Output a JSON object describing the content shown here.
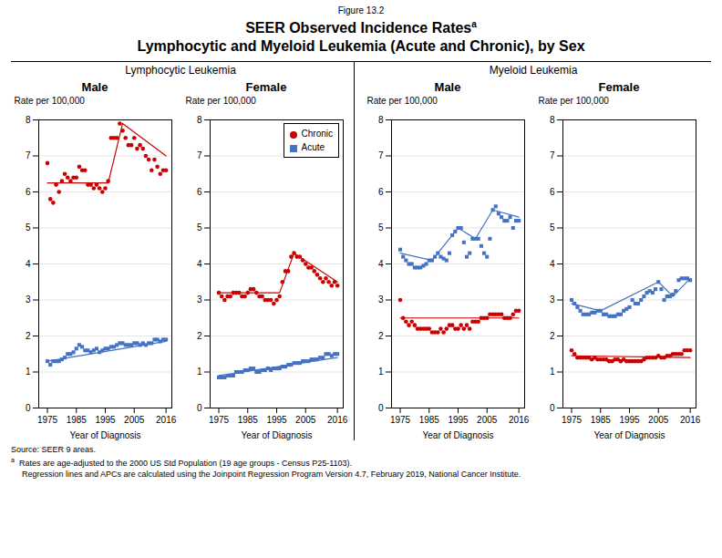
{
  "figure_label": "Figure 13.2",
  "title": "SEER Observed Incidence Rates",
  "title_mark": "a",
  "subtitle": "Lymphocytic and Myeloid Leukemia (Acute and Chronic), by Sex",
  "section_labels": [
    "Lymphocytic Leukemia",
    "Myeloid Leukemia"
  ],
  "notes": [
    {
      "text": "Source: SEER 9 areas."
    },
    {
      "mark": "a",
      "text": "Rates are age-adjusted to the 2000 US Std Population (19 age groups - Census P25-1103)."
    },
    {
      "text": "Regression lines and APCs are calculated using the Joinpoint Regression Program Version 4.7, February 2019, National Cancer Institute."
    }
  ],
  "chart_data": [
    {
      "type": "scatter",
      "title": "Male",
      "xlabel": "Year of Diagnosis",
      "ylabel": "Rate per 100,000",
      "xlim": [
        1972,
        2018
      ],
      "xticks": [
        1975,
        1985,
        1995,
        2005,
        2016
      ],
      "ylim": [
        0,
        8
      ],
      "yticks": [
        0,
        1,
        2,
        3,
        4,
        5,
        6,
        7,
        8
      ],
      "grid": true,
      "series": [
        {
          "name": "Chronic",
          "type": "scatter",
          "marker": "circle",
          "color": "#cc0000",
          "x": [
            1975,
            1976,
            1977,
            1978,
            1979,
            1980,
            1981,
            1982,
            1983,
            1984,
            1985,
            1986,
            1987,
            1988,
            1989,
            1990,
            1991,
            1992,
            1993,
            1994,
            1995,
            1996,
            1997,
            1998,
            1999,
            2000,
            2001,
            2002,
            2003,
            2004,
            2005,
            2006,
            2007,
            2008,
            2009,
            2010,
            2011,
            2012,
            2013,
            2014,
            2015,
            2016
          ],
          "values": [
            6.8,
            5.8,
            5.7,
            6.2,
            6.0,
            6.3,
            6.5,
            6.4,
            6.3,
            6.4,
            6.4,
            6.7,
            6.6,
            6.6,
            6.2,
            6.2,
            6.1,
            6.2,
            6.1,
            6.0,
            6.1,
            6.3,
            7.5,
            7.5,
            7.5,
            7.9,
            7.7,
            7.5,
            7.3,
            7.3,
            7.5,
            7.2,
            7.3,
            7.2,
            7.0,
            6.9,
            6.6,
            6.9,
            6.7,
            6.5,
            6.6,
            6.6
          ]
        },
        {
          "name": "Acute",
          "type": "scatter",
          "marker": "square",
          "color": "#4472c4",
          "x": [
            1975,
            1976,
            1977,
            1978,
            1979,
            1980,
            1981,
            1982,
            1983,
            1984,
            1985,
            1986,
            1987,
            1988,
            1989,
            1990,
            1991,
            1992,
            1993,
            1994,
            1995,
            1996,
            1997,
            1998,
            1999,
            2000,
            2001,
            2002,
            2003,
            2004,
            2005,
            2006,
            2007,
            2008,
            2009,
            2010,
            2011,
            2012,
            2013,
            2014,
            2015,
            2016
          ],
          "values": [
            1.3,
            1.2,
            1.3,
            1.3,
            1.3,
            1.35,
            1.4,
            1.5,
            1.5,
            1.55,
            1.65,
            1.75,
            1.7,
            1.6,
            1.6,
            1.55,
            1.6,
            1.65,
            1.55,
            1.6,
            1.65,
            1.65,
            1.7,
            1.7,
            1.75,
            1.8,
            1.8,
            1.75,
            1.75,
            1.75,
            1.8,
            1.8,
            1.75,
            1.8,
            1.75,
            1.8,
            1.8,
            1.9,
            1.9,
            1.85,
            1.9,
            1.9
          ]
        },
        {
          "type": "line",
          "color": "#cc0000",
          "x": [
            1975,
            1996,
            2001,
            2016
          ],
          "values": [
            6.25,
            6.25,
            7.9,
            7.0
          ]
        },
        {
          "type": "line",
          "color": "#4472c4",
          "x": [
            1975,
            2016
          ],
          "values": [
            1.3,
            1.85
          ]
        }
      ]
    },
    {
      "type": "scatter",
      "title": "Female",
      "xlabel": "Year of Diagnosis",
      "ylabel": "Rate per 100,000",
      "xlim": [
        1972,
        2018
      ],
      "xticks": [
        1975,
        1985,
        1995,
        2005,
        2016
      ],
      "ylim": [
        0,
        8
      ],
      "yticks": [
        0,
        1,
        2,
        3,
        4,
        5,
        6,
        7,
        8
      ],
      "grid": true,
      "legend": "upper right",
      "series": [
        {
          "name": "Chronic",
          "type": "scatter",
          "marker": "circle",
          "color": "#cc0000",
          "x": [
            1975,
            1976,
            1977,
            1978,
            1979,
            1980,
            1981,
            1982,
            1983,
            1984,
            1985,
            1986,
            1987,
            1988,
            1989,
            1990,
            1991,
            1992,
            1993,
            1994,
            1995,
            1996,
            1997,
            1998,
            1999,
            2000,
            2001,
            2002,
            2003,
            2004,
            2005,
            2006,
            2007,
            2008,
            2009,
            2010,
            2011,
            2012,
            2013,
            2014,
            2015,
            2016
          ],
          "values": [
            3.2,
            3.1,
            3.0,
            3.1,
            3.1,
            3.2,
            3.2,
            3.2,
            3.1,
            3.1,
            3.2,
            3.3,
            3.3,
            3.2,
            3.1,
            3.1,
            3.0,
            3.0,
            3.0,
            2.9,
            3.0,
            3.1,
            3.5,
            3.8,
            3.8,
            4.2,
            4.3,
            4.2,
            4.2,
            4.1,
            4.0,
            3.9,
            3.9,
            3.8,
            3.7,
            3.6,
            3.5,
            3.6,
            3.5,
            3.4,
            3.5,
            3.4
          ]
        },
        {
          "name": "Acute",
          "type": "scatter",
          "marker": "square",
          "color": "#4472c4",
          "x": [
            1975,
            1976,
            1977,
            1978,
            1979,
            1980,
            1981,
            1982,
            1983,
            1984,
            1985,
            1986,
            1987,
            1988,
            1989,
            1990,
            1991,
            1992,
            1993,
            1994,
            1995,
            1996,
            1997,
            1998,
            1999,
            2000,
            2001,
            2002,
            2003,
            2004,
            2005,
            2006,
            2007,
            2008,
            2009,
            2010,
            2011,
            2012,
            2013,
            2014,
            2015,
            2016
          ],
          "values": [
            0.85,
            0.85,
            0.85,
            0.9,
            0.9,
            0.9,
            1.0,
            1.0,
            1.0,
            1.05,
            1.05,
            1.1,
            1.1,
            1.0,
            1.0,
            1.05,
            1.05,
            1.1,
            1.05,
            1.1,
            1.1,
            1.1,
            1.15,
            1.15,
            1.2,
            1.2,
            1.25,
            1.25,
            1.25,
            1.3,
            1.3,
            1.3,
            1.35,
            1.35,
            1.35,
            1.4,
            1.4,
            1.5,
            1.5,
            1.45,
            1.5,
            1.5
          ]
        },
        {
          "type": "line",
          "color": "#cc0000",
          "x": [
            1975,
            1996,
            2001,
            2016
          ],
          "values": [
            3.2,
            3.2,
            4.3,
            3.5
          ]
        },
        {
          "type": "line",
          "color": "#4472c4",
          "x": [
            1975,
            2016
          ],
          "values": [
            0.9,
            1.4
          ]
        }
      ]
    },
    {
      "type": "scatter",
      "title": "Male",
      "xlabel": "Year of Diagnosis",
      "ylabel": "Rate per 100,000",
      "xlim": [
        1972,
        2018
      ],
      "xticks": [
        1975,
        1985,
        1995,
        2005,
        2016
      ],
      "ylim": [
        0,
        8
      ],
      "yticks": [
        0,
        1,
        2,
        3,
        4,
        5,
        6,
        7,
        8
      ],
      "grid": true,
      "series": [
        {
          "name": "Acute",
          "type": "scatter",
          "marker": "square",
          "color": "#4472c4",
          "x": [
            1975,
            1976,
            1977,
            1978,
            1979,
            1980,
            1981,
            1982,
            1983,
            1984,
            1985,
            1986,
            1987,
            1988,
            1989,
            1990,
            1991,
            1992,
            1993,
            1994,
            1995,
            1996,
            1997,
            1998,
            1999,
            2000,
            2001,
            2002,
            2003,
            2004,
            2005,
            2006,
            2007,
            2008,
            2009,
            2010,
            2011,
            2012,
            2013,
            2014,
            2015,
            2016
          ],
          "values": [
            4.4,
            4.2,
            4.1,
            4.0,
            4.0,
            3.9,
            3.9,
            3.9,
            3.95,
            4.0,
            4.1,
            4.1,
            4.2,
            4.3,
            4.2,
            4.15,
            4.1,
            4.3,
            4.8,
            4.9,
            5.0,
            5.0,
            4.6,
            4.2,
            4.3,
            4.7,
            4.7,
            4.7,
            4.5,
            4.3,
            4.2,
            4.7,
            5.5,
            5.6,
            5.4,
            5.3,
            5.2,
            5.2,
            5.3,
            5.0,
            5.2,
            5.2
          ]
        },
        {
          "name": "Chronic",
          "type": "scatter",
          "marker": "circle",
          "color": "#cc0000",
          "x": [
            1975,
            1976,
            1977,
            1978,
            1979,
            1980,
            1981,
            1982,
            1983,
            1984,
            1985,
            1986,
            1987,
            1988,
            1989,
            1990,
            1991,
            1992,
            1993,
            1994,
            1995,
            1996,
            1997,
            1998,
            1999,
            2000,
            2001,
            2002,
            2003,
            2004,
            2005,
            2006,
            2007,
            2008,
            2009,
            2010,
            2011,
            2012,
            2013,
            2014,
            2015,
            2016
          ],
          "values": [
            3.0,
            2.5,
            2.4,
            2.3,
            2.4,
            2.3,
            2.2,
            2.2,
            2.2,
            2.2,
            2.2,
            2.1,
            2.1,
            2.1,
            2.2,
            2.1,
            2.2,
            2.3,
            2.3,
            2.2,
            2.2,
            2.3,
            2.2,
            2.3,
            2.2,
            2.4,
            2.4,
            2.4,
            2.5,
            2.5,
            2.5,
            2.6,
            2.6,
            2.6,
            2.6,
            2.6,
            2.5,
            2.5,
            2.5,
            2.6,
            2.7,
            2.7
          ]
        },
        {
          "type": "line",
          "color": "#4472c4",
          "x": [
            1975,
            1986,
            1995,
            2001,
            2007,
            2016
          ],
          "values": [
            4.3,
            4.1,
            5.0,
            4.7,
            5.5,
            5.3
          ]
        },
        {
          "type": "line",
          "color": "#cc0000",
          "x": [
            1975,
            2016
          ],
          "values": [
            2.5,
            2.5
          ]
        }
      ]
    },
    {
      "type": "scatter",
      "title": "Female",
      "xlabel": "Year of Diagnosis",
      "ylabel": "Rate per 100,000",
      "xlim": [
        1972,
        2018
      ],
      "xticks": [
        1975,
        1985,
        1995,
        2005,
        2016
      ],
      "ylim": [
        0,
        8
      ],
      "yticks": [
        0,
        1,
        2,
        3,
        4,
        5,
        6,
        7,
        8
      ],
      "grid": true,
      "series": [
        {
          "name": "Acute",
          "type": "scatter",
          "marker": "square",
          "color": "#4472c4",
          "x": [
            1975,
            1976,
            1977,
            1978,
            1979,
            1980,
            1981,
            1982,
            1983,
            1984,
            1985,
            1986,
            1987,
            1988,
            1989,
            1990,
            1991,
            1992,
            1993,
            1994,
            1995,
            1996,
            1997,
            1998,
            1999,
            2000,
            2001,
            2002,
            2003,
            2004,
            2005,
            2006,
            2007,
            2008,
            2009,
            2010,
            2011,
            2012,
            2013,
            2014,
            2015,
            2016
          ],
          "values": [
            3.0,
            2.9,
            2.8,
            2.7,
            2.6,
            2.6,
            2.6,
            2.65,
            2.65,
            2.7,
            2.7,
            2.6,
            2.6,
            2.55,
            2.55,
            2.55,
            2.6,
            2.6,
            2.7,
            2.75,
            2.8,
            3.0,
            2.9,
            2.9,
            3.0,
            3.1,
            3.2,
            3.25,
            3.2,
            3.3,
            3.5,
            3.3,
            3.0,
            3.1,
            3.1,
            3.15,
            3.25,
            3.55,
            3.6,
            3.6,
            3.6,
            3.55
          ]
        },
        {
          "name": "Chronic",
          "type": "scatter",
          "marker": "circle",
          "color": "#cc0000",
          "x": [
            1975,
            1976,
            1977,
            1978,
            1979,
            1980,
            1981,
            1982,
            1983,
            1984,
            1985,
            1986,
            1987,
            1988,
            1989,
            1990,
            1991,
            1992,
            1993,
            1994,
            1995,
            1996,
            1997,
            1998,
            1999,
            2000,
            2001,
            2002,
            2003,
            2004,
            2005,
            2006,
            2007,
            2008,
            2009,
            2010,
            2011,
            2012,
            2013,
            2014,
            2015,
            2016
          ],
          "values": [
            1.6,
            1.5,
            1.4,
            1.4,
            1.4,
            1.4,
            1.4,
            1.35,
            1.4,
            1.35,
            1.35,
            1.35,
            1.35,
            1.3,
            1.3,
            1.35,
            1.35,
            1.3,
            1.35,
            1.3,
            1.3,
            1.3,
            1.3,
            1.3,
            1.3,
            1.35,
            1.4,
            1.4,
            1.4,
            1.4,
            1.45,
            1.4,
            1.4,
            1.45,
            1.45,
            1.5,
            1.5,
            1.5,
            1.5,
            1.6,
            1.6,
            1.6
          ]
        },
        {
          "type": "line",
          "color": "#4472c4",
          "x": [
            1975,
            1985,
            2005,
            2010,
            2016
          ],
          "values": [
            2.9,
            2.7,
            3.5,
            3.1,
            3.6
          ]
        },
        {
          "type": "line",
          "color": "#cc0000",
          "x": [
            1975,
            2016
          ],
          "values": [
            1.45,
            1.4
          ]
        }
      ]
    }
  ]
}
